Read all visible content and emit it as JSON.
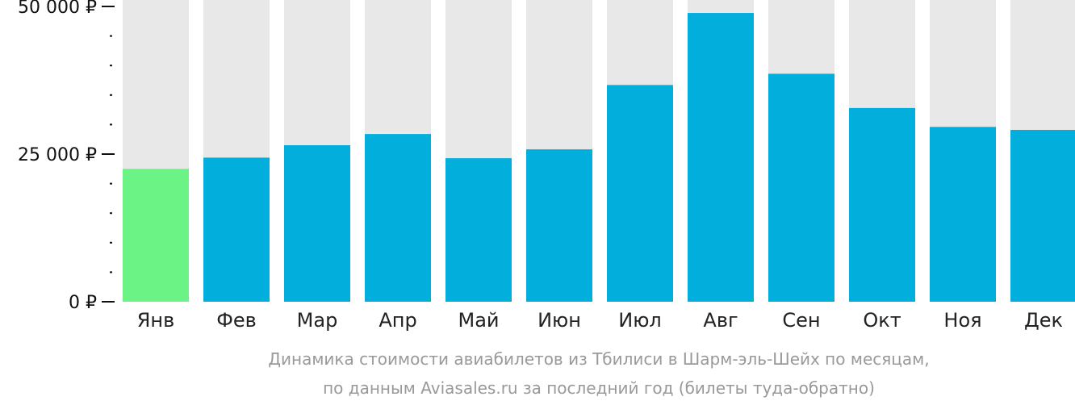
{
  "chart_data": {
    "type": "bar",
    "categories": [
      "Янв",
      "Фев",
      "Мар",
      "Апр",
      "Май",
      "Июн",
      "Июл",
      "Авг",
      "Сен",
      "Окт",
      "Ноя",
      "Дек"
    ],
    "values": [
      22500,
      24400,
      26500,
      28400,
      24300,
      25800,
      36700,
      48900,
      38600,
      32800,
      29600,
      29100
    ],
    "ylim": [
      0,
      50000
    ],
    "y_ticks": [
      {
        "value": 0,
        "label": "0 ₽"
      },
      {
        "value": 25000,
        "label": "25 000 ₽"
      },
      {
        "value": 50000,
        "label": "50 000 ₽"
      }
    ],
    "y_minor_step": 5000,
    "caption_lines": [
      "Динамика стоимости авиабилетов из Тбилиси в Шарм-эль-Шейх по месяцам,",
      "по данным Aviasales.ru за последний год (билеты туда-обратно)"
    ],
    "highlight_index": 0,
    "colors": {
      "bar": "#02afdc",
      "bar_highlight": "#6bf485",
      "track": "#e8e8e8",
      "axis": "#111111",
      "caption": "#999999"
    }
  }
}
